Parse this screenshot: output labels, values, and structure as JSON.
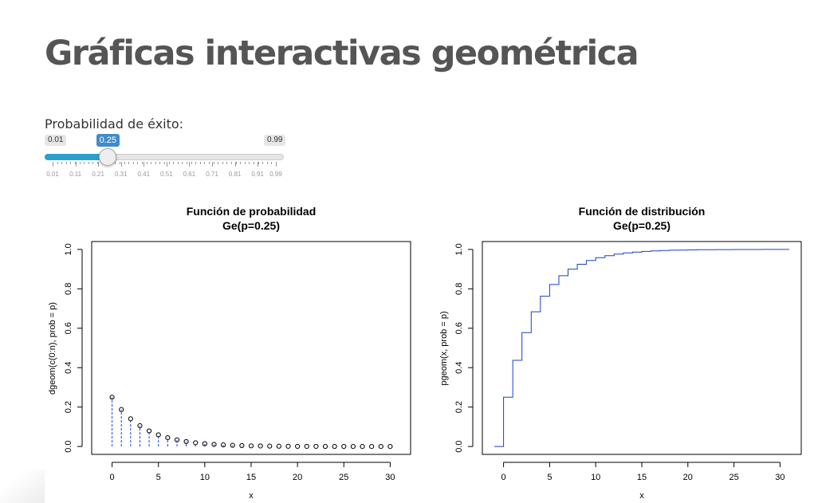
{
  "page": {
    "title": "Gráficas interactivas geométrica"
  },
  "slider": {
    "label": "Probabilidad de éxito:",
    "min": 0.01,
    "max": 0.99,
    "value": 0.25,
    "min_label": "0.01",
    "max_label": "0.99",
    "value_label": "0.25",
    "grid_labels": [
      "0.01",
      "0.11",
      "0.21",
      "0.31",
      "0.41",
      "0.51",
      "0.61",
      "0.71",
      "0.81",
      "0.91",
      "0.99"
    ],
    "grid_values": [
      0.01,
      0.11,
      0.21,
      0.31,
      0.41,
      0.51,
      0.61,
      0.71,
      0.81,
      0.91,
      0.99
    ],
    "accent_color": "#2aa0cc",
    "badge_color": "#428bca"
  },
  "plots": {
    "left": {
      "title_line1": "Función de probabilidad",
      "title_line2": "Ge(p=0.25)",
      "xlabel": "x",
      "ylabel": "dgeom(c(0:n), prob = p)",
      "x_ticks": [
        "0",
        "5",
        "10",
        "15",
        "20",
        "25",
        "30"
      ],
      "y_ticks": [
        "0.0",
        "0.2",
        "0.4",
        "0.6",
        "0.8",
        "1.0"
      ]
    },
    "right": {
      "title_line1": "Función de distribución",
      "title_line2": "Ge(p=0.25)",
      "xlabel": "x",
      "ylabel": "pgeom(x, prob = p)",
      "x_ticks": [
        "0",
        "5",
        "10",
        "15",
        "20",
        "25",
        "30"
      ],
      "y_ticks": [
        "0.0",
        "0.2",
        "0.4",
        "0.6",
        "0.8",
        "1.0"
      ]
    }
  },
  "chart_data": [
    {
      "type": "scatter",
      "title": "Función de probabilidad Ge(p=0.25)",
      "xlabel": "x",
      "ylabel": "dgeom(c(0:n), prob = p)",
      "xlim": [
        0,
        30
      ],
      "ylim": [
        0,
        1
      ],
      "x": [
        0,
        1,
        2,
        3,
        4,
        5,
        6,
        7,
        8,
        9,
        10,
        11,
        12,
        13,
        14,
        15,
        16,
        17,
        18,
        19,
        20,
        21,
        22,
        23,
        24,
        25,
        26,
        27,
        28,
        29,
        30
      ],
      "y": [
        0.25,
        0.1875,
        0.1406,
        0.1055,
        0.0791,
        0.0593,
        0.0445,
        0.0334,
        0.025,
        0.0188,
        0.0141,
        0.0106,
        0.0079,
        0.0059,
        0.0045,
        0.0033,
        0.0025,
        0.0019,
        0.0014,
        0.0011,
        0.0008,
        0.0006,
        0.0005,
        0.0003,
        0.0003,
        0.0002,
        0.0001,
        0.0001,
        0.0001,
        0.0001,
        0.0
      ],
      "series_color": "#1a3fcc",
      "grid": false
    },
    {
      "type": "line",
      "title": "Función de distribución Ge(p=0.25)",
      "xlabel": "x",
      "ylabel": "pgeom(x, prob = p)",
      "xlim": [
        -1,
        31
      ],
      "ylim": [
        0,
        1
      ],
      "step": true,
      "x": [
        -1,
        0,
        1,
        2,
        3,
        4,
        5,
        6,
        7,
        8,
        9,
        10,
        11,
        12,
        13,
        14,
        15,
        16,
        17,
        18,
        19,
        20,
        21,
        22,
        23,
        24,
        25,
        26,
        27,
        28,
        29,
        30,
        31
      ],
      "y": [
        0,
        0.25,
        0.4375,
        0.5781,
        0.6836,
        0.7627,
        0.822,
        0.8665,
        0.8999,
        0.9249,
        0.9437,
        0.9578,
        0.9683,
        0.9762,
        0.9822,
        0.9866,
        0.99,
        0.9925,
        0.9944,
        0.9958,
        0.9968,
        0.9976,
        0.9982,
        0.9987,
        0.999,
        0.9992,
        0.9994,
        0.9996,
        0.9997,
        0.9998,
        0.9998,
        0.9999,
        1.0
      ],
      "series_color": "#1a3fcc",
      "grid": false
    }
  ]
}
